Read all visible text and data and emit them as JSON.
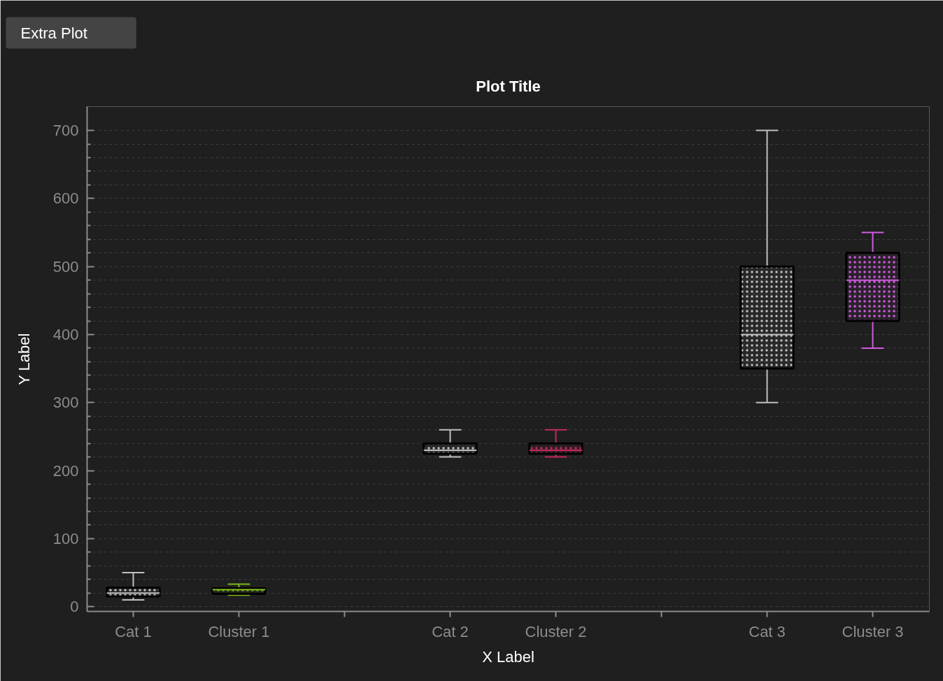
{
  "chart_data": {
    "type": "box",
    "title": "Plot Title",
    "xlabel": "X Label",
    "ylabel": "Y Label",
    "annotations": [
      "Extra Plot"
    ],
    "categories": [
      "Cat 1",
      "Cluster 1",
      null,
      "Cat 2",
      "Cluster 2",
      null,
      "Cat 3",
      "Cluster 3"
    ],
    "boxes": [
      {
        "low": 10,
        "q1": 15,
        "median": 20,
        "q3": 28,
        "high": 50
      },
      {
        "low": 17,
        "q1": 19,
        "median": 25,
        "q3": 27,
        "high": 33
      },
      null,
      {
        "low": 220,
        "q1": 225,
        "median": 230,
        "q3": 240,
        "high": 260
      },
      {
        "low": 220,
        "q1": 225,
        "median": 230,
        "q3": 240,
        "high": 260
      },
      null,
      {
        "low": 300,
        "q1": 350,
        "median": 400,
        "q3": 500,
        "high": 700
      },
      {
        "low": 380,
        "q1": 420,
        "median": 480,
        "q3": 520,
        "high": 550
      }
    ],
    "colors": [
      "#c0c0c0",
      "#7db51b",
      null,
      "#c0c0c0",
      "#c62a5b",
      null,
      "#c0c0c0",
      "#d05ce0"
    ],
    "ylim": [
      -7,
      735
    ],
    "yticks": [
      0,
      {
        "value": 20,
        "label": null
      },
      {
        "value": 40,
        "label": null
      },
      {
        "value": 60,
        "label": null
      },
      {
        "value": 80,
        "label": null
      },
      100,
      {
        "value": 120,
        "label": null
      },
      {
        "value": 140,
        "label": null
      },
      {
        "value": 160,
        "label": null
      },
      {
        "value": 180,
        "label": null
      },
      200,
      {
        "value": 220,
        "label": null
      },
      {
        "value": 240,
        "label": null
      },
      {
        "value": 260,
        "label": null
      },
      {
        "value": 280,
        "label": null
      },
      300,
      {
        "value": 320,
        "label": null
      },
      {
        "value": 340,
        "label": null
      },
      {
        "value": 360,
        "label": null
      },
      {
        "value": 380,
        "label": null
      },
      400,
      {
        "value": 420,
        "label": null
      },
      {
        "value": 440,
        "label": null
      },
      {
        "value": 460,
        "label": null
      },
      {
        "value": 480,
        "label": null
      },
      500,
      {
        "value": 520,
        "label": null
      },
      {
        "value": 540,
        "label": null
      },
      {
        "value": 560,
        "label": null
      },
      {
        "value": 580,
        "label": null
      },
      600,
      {
        "value": 620,
        "label": null
      },
      {
        "value": 640,
        "label": null
      },
      {
        "value": 660,
        "label": null
      },
      {
        "value": 680,
        "label": null
      },
      700
    ],
    "grid": "y"
  }
}
